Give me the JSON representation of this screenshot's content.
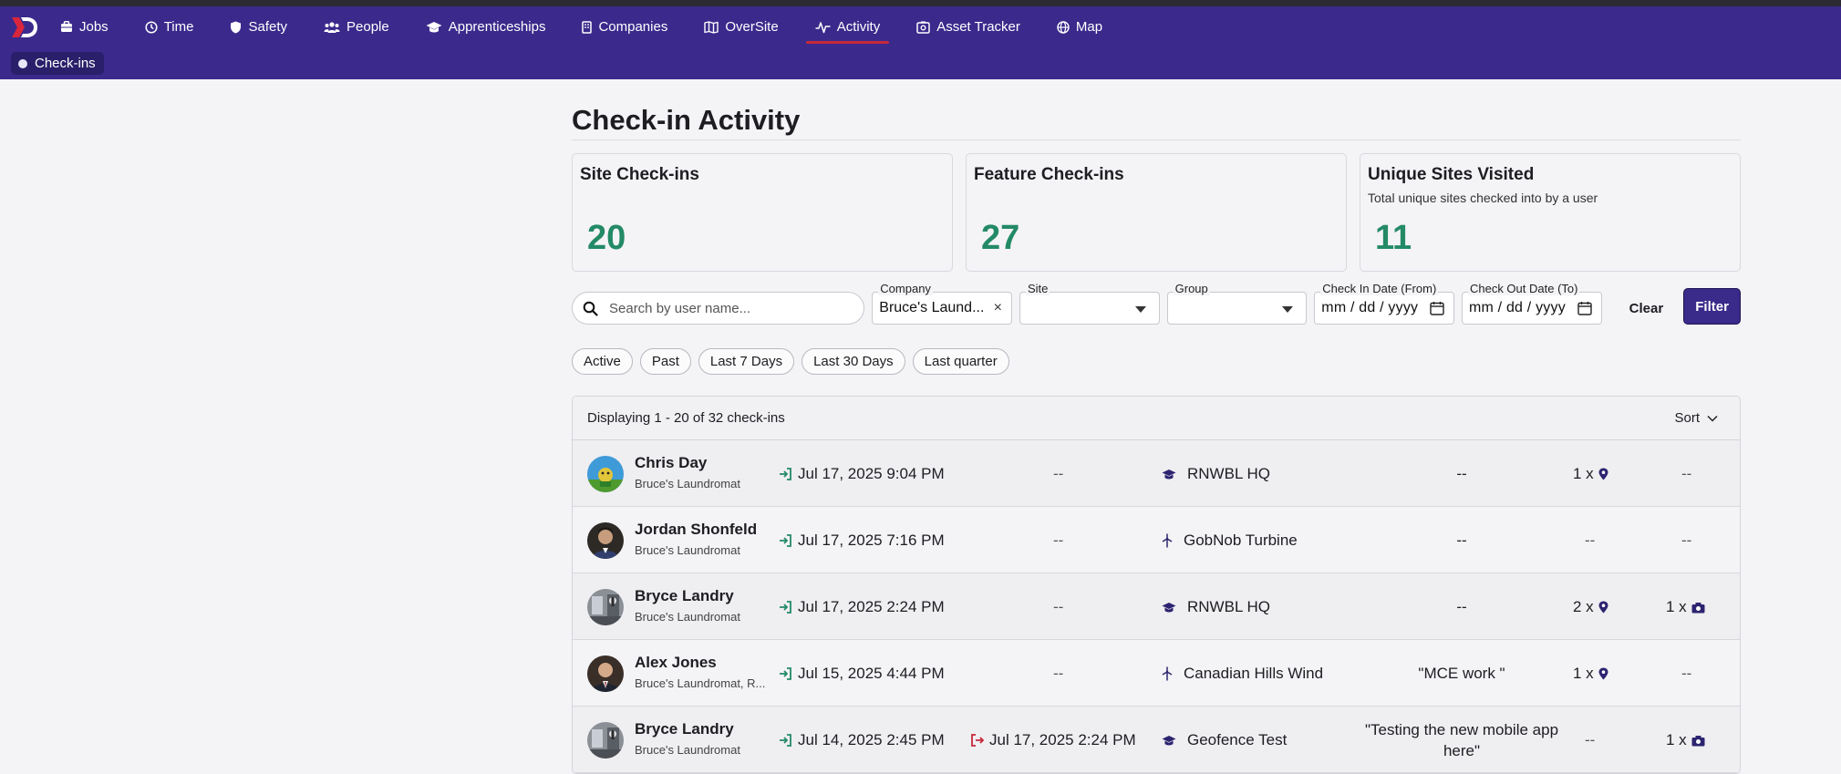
{
  "nav": {
    "items": [
      {
        "label": "Jobs",
        "icon": "briefcase-icon"
      },
      {
        "label": "Time",
        "icon": "clock-icon"
      },
      {
        "label": "Safety",
        "icon": "shield-icon"
      },
      {
        "label": "People",
        "icon": "people-icon"
      },
      {
        "label": "Apprenticeships",
        "icon": "graduation-cap-icon"
      },
      {
        "label": "Companies",
        "icon": "building-icon"
      },
      {
        "label": "OverSite",
        "icon": "map-book-icon"
      },
      {
        "label": "Activity",
        "icon": "activity-pulse-icon"
      },
      {
        "label": "Asset Tracker",
        "icon": "asset-tracker-icon"
      },
      {
        "label": "Map",
        "icon": "globe-icon"
      }
    ],
    "active": "Activity",
    "subtab": "Check-ins"
  },
  "page": {
    "title": "Check-in Activity"
  },
  "cards": [
    {
      "title": "Site Check-ins",
      "subtitle": "",
      "value": "20"
    },
    {
      "title": "Feature Check-ins",
      "subtitle": "",
      "value": "27"
    },
    {
      "title": "Unique Sites Visited",
      "subtitle": "Total unique sites checked into by a user",
      "value": "11"
    }
  ],
  "filters": {
    "search_placeholder": "Search by user name...",
    "company_label": "Company",
    "company_value": "Bruce's Laund...",
    "site_label": "Site",
    "group_label": "Group",
    "checkin_label": "Check In Date (From)",
    "checkout_label": "Check Out Date (To)",
    "date_placeholder": "mm / dd / yyyy",
    "clear_label": "Clear",
    "filter_label": "Filter"
  },
  "chips": [
    "Active",
    "Past",
    "Last 7 Days",
    "Last 30 Days",
    "Last quarter"
  ],
  "table": {
    "summary": "Displaying 1 - 20 of 32 check-ins",
    "sort_label": "Sort",
    "rows": [
      {
        "name": "Chris Day",
        "company": "Bruce's Laundromat",
        "check_in": "Jul 17, 2025 9:04 PM",
        "check_out": "--",
        "site": "RNWBL HQ",
        "site_icon": "graduation-cap-icon",
        "note": "--",
        "pins": "1 x",
        "photos": "--"
      },
      {
        "name": "Jordan Shonfeld",
        "company": "Bruce's Laundromat",
        "check_in": "Jul 17, 2025 7:16 PM",
        "check_out": "--",
        "site": "GobNob Turbine",
        "site_icon": "wind-turbine-icon",
        "note": "--",
        "pins": "--",
        "photos": "--"
      },
      {
        "name": "Bryce Landry",
        "company": "Bruce's Laundromat",
        "check_in": "Jul 17, 2025 2:24 PM",
        "check_out": "--",
        "site": "RNWBL HQ",
        "site_icon": "graduation-cap-icon",
        "note": "--",
        "pins": "2 x",
        "photos": "1 x"
      },
      {
        "name": "Alex Jones",
        "company": "Bruce's Laundromat, R...",
        "check_in": "Jul 15, 2025 4:44 PM",
        "check_out": "--",
        "site": "Canadian Hills Wind",
        "site_icon": "wind-turbine-icon",
        "note": "\"MCE work \"",
        "pins": "1 x",
        "photos": "--"
      },
      {
        "name": "Bryce Landry",
        "company": "Bruce's Laundromat",
        "check_in": "Jul 14, 2025 2:45 PM",
        "check_out": "Jul 17, 2025 2:24 PM",
        "site": "Geofence Test",
        "site_icon": "graduation-cap-icon",
        "note": "\"Testing the new mobile app here\"",
        "pins": "--",
        "photos": "1 x"
      }
    ]
  }
}
